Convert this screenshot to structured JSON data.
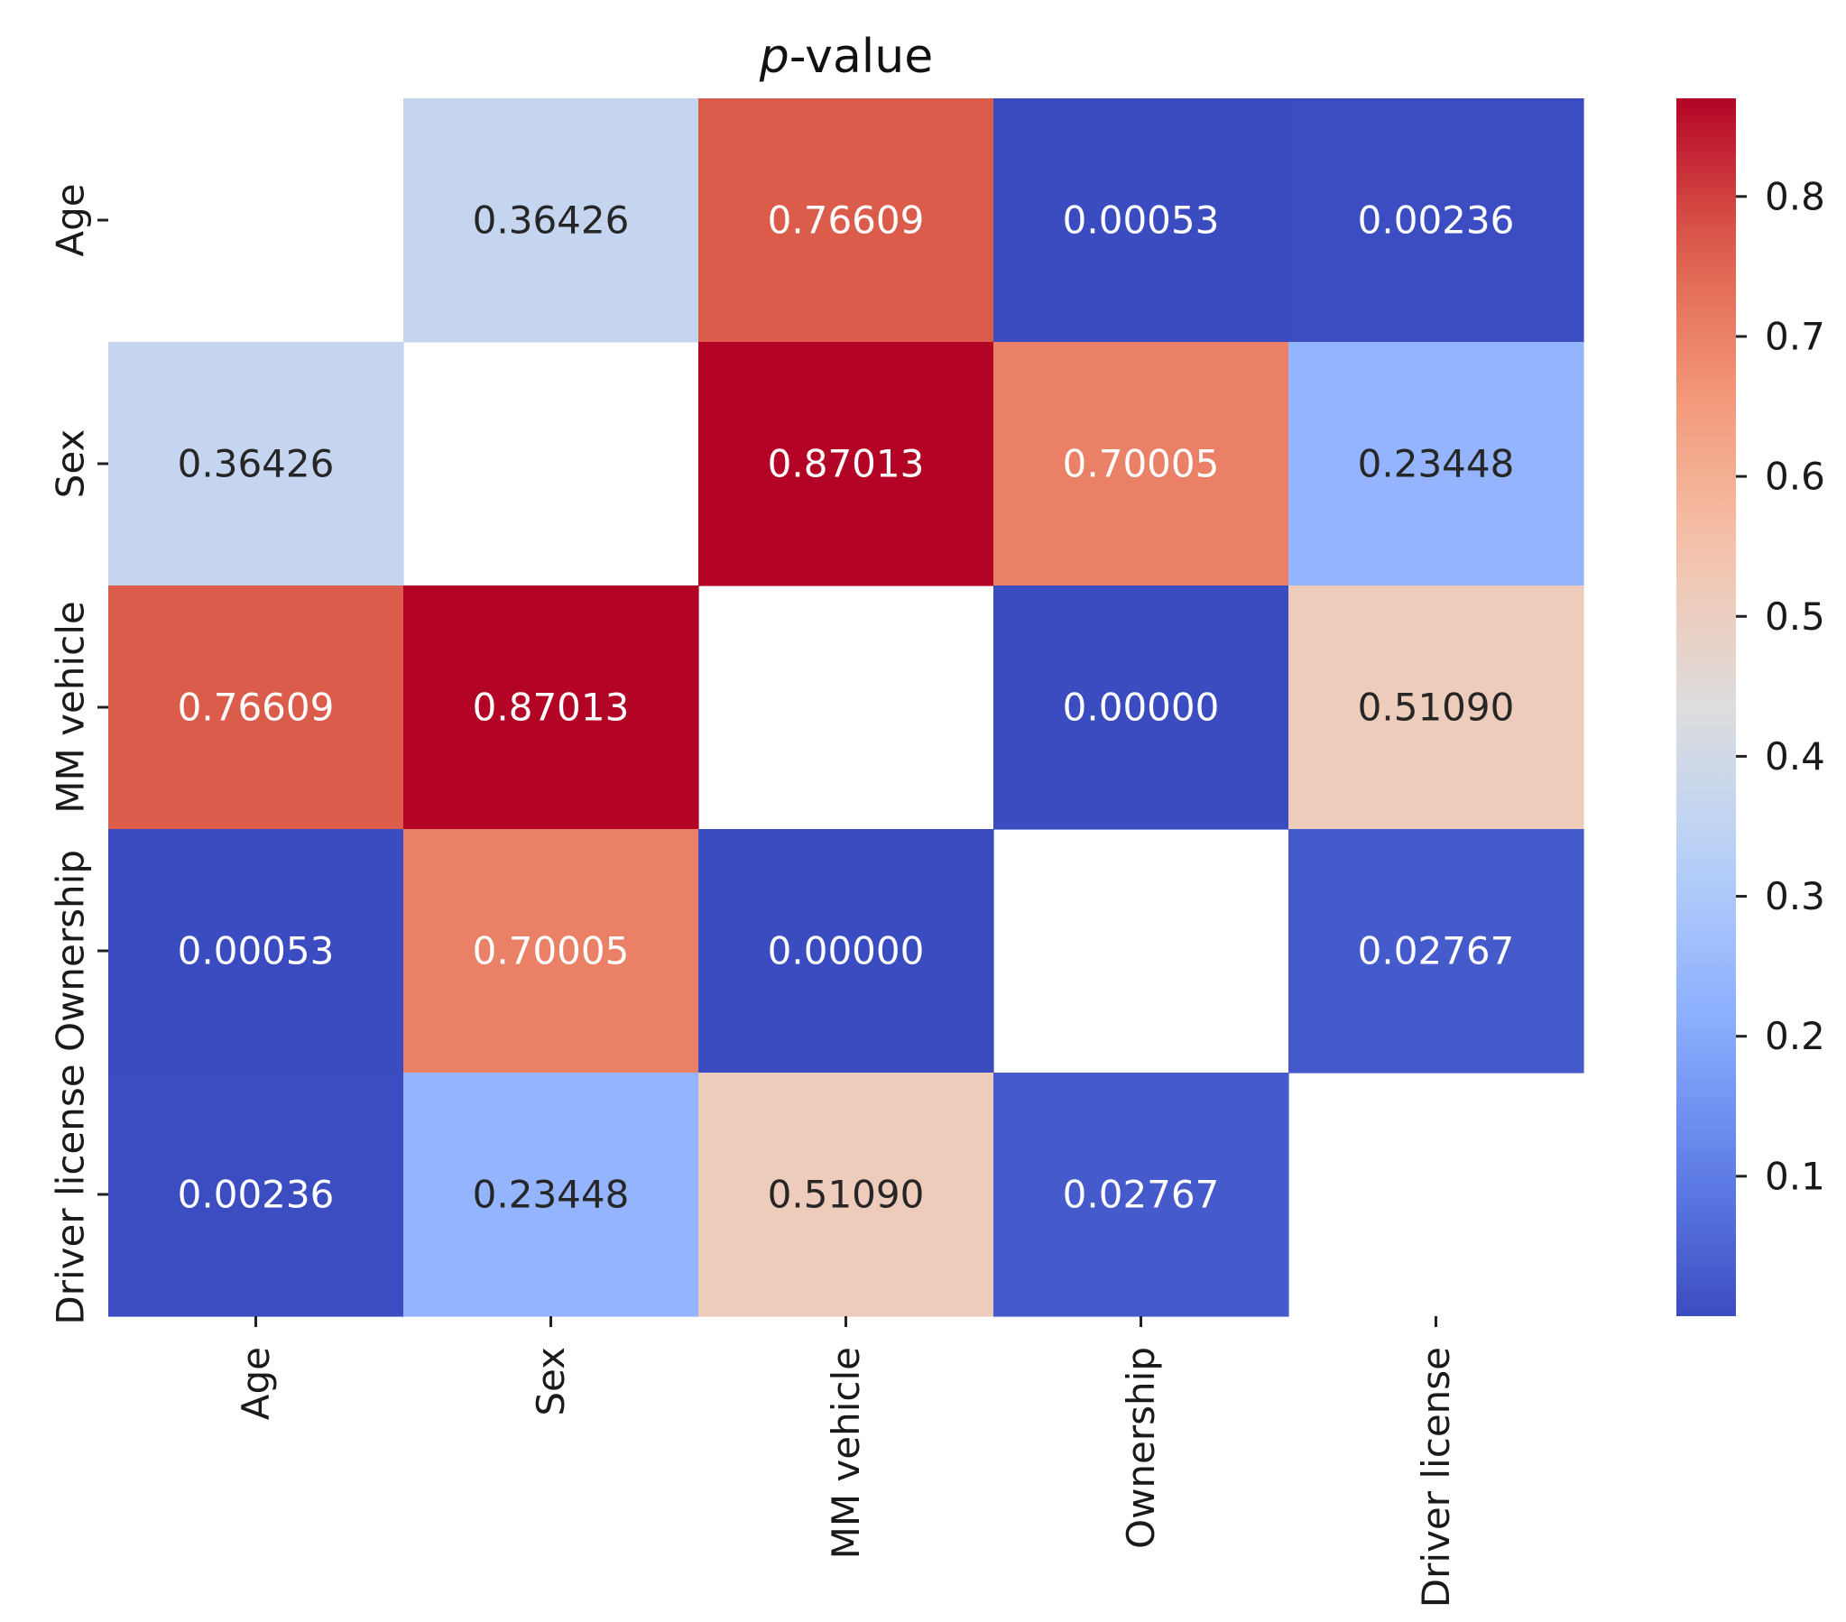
{
  "chart_data": {
    "type": "heatmap",
    "title_prefix": "p",
    "title_suffix": "-value",
    "rows": [
      "Age",
      "Sex",
      "MM vehicle",
      "Ownership",
      "Driver license"
    ],
    "columns": [
      "Age",
      "Sex",
      "MM vehicle",
      "Ownership",
      "Driver license"
    ],
    "values": [
      [
        null,
        0.36426,
        0.76609,
        0.00053,
        0.00236
      ],
      [
        0.36426,
        null,
        0.87013,
        0.70005,
        0.23448
      ],
      [
        0.76609,
        0.87013,
        null,
        0.0,
        0.5109
      ],
      [
        0.00053,
        0.70005,
        0.0,
        null,
        0.02767
      ],
      [
        0.00236,
        0.23448,
        0.5109,
        0.02767,
        null
      ]
    ],
    "value_format": "0.00000",
    "colormap": "coolwarm",
    "vmin": 0.0,
    "vmax": 0.87013,
    "colorbar_ticks": [
      0.1,
      0.2,
      0.3,
      0.4,
      0.5,
      0.6,
      0.7,
      0.8
    ],
    "colorbar_tick_labels": [
      "0.1",
      "0.2",
      "0.3",
      "0.4",
      "0.5",
      "0.6",
      "0.7",
      "0.8"
    ],
    "diagonal": "empty"
  }
}
